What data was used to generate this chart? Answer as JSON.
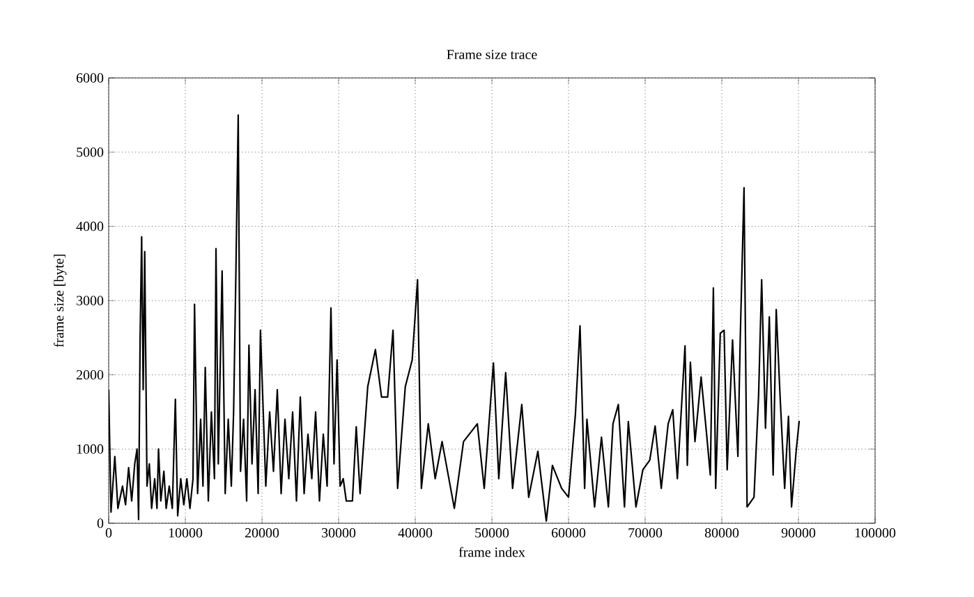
{
  "chart_data": {
    "type": "line",
    "title": "Frame size trace",
    "xlabel": "frame index",
    "ylabel": "frame size [byte]",
    "xlim": [
      0,
      100000
    ],
    "ylim": [
      0,
      6000
    ],
    "xticks": [
      0,
      10000,
      20000,
      30000,
      40000,
      50000,
      60000,
      70000,
      80000,
      90000,
      100000
    ],
    "yticks": [
      0,
      1000,
      2000,
      3000,
      4000,
      5000,
      6000
    ],
    "grid": true,
    "marker": "none",
    "line_style": "solid",
    "series": [
      {
        "color": "#000000",
        "x": [
          0,
          300,
          800,
          1200,
          1800,
          2200,
          2600,
          3000,
          3400,
          3700,
          3900,
          4100,
          4300,
          4500,
          4700,
          5000,
          5300,
          5600,
          6000,
          6300,
          6500,
          6800,
          7200,
          7500,
          7900,
          8300,
          8700,
          9000,
          9400,
          9800,
          10200,
          10600,
          11000,
          11200,
          11600,
          12000,
          12300,
          12600,
          13000,
          13400,
          13800,
          14000,
          14300,
          14800,
          15200,
          15600,
          16000,
          16300,
          16600,
          16900,
          17200,
          17600,
          18000,
          18300,
          18700,
          19100,
          19500,
          19800,
          20500,
          21000,
          21500,
          22000,
          22500,
          23000,
          23500,
          24000,
          24500,
          25000,
          25500,
          26000,
          26500,
          27000,
          27500,
          28000,
          28500,
          29000,
          29400,
          29800,
          30200,
          30600,
          31000,
          31800,
          32300,
          32800,
          33800,
          34800,
          35600,
          36400,
          37100,
          37700,
          38700,
          39600,
          40300,
          40800,
          41700,
          42600,
          43500,
          45100,
          46300,
          48100,
          49000,
          50200,
          50900,
          51800,
          52700,
          53900,
          54800,
          56000,
          57100,
          57900,
          59100,
          60000,
          60900,
          61500,
          62100,
          62400,
          63400,
          64300,
          65200,
          65800,
          66500,
          67300,
          67800,
          68800,
          69700,
          70600,
          71300,
          72100,
          73000,
          73600,
          74200,
          75200,
          75500,
          75900,
          76500,
          77300,
          78000,
          78500,
          78900,
          79200,
          79800,
          80300,
          80700,
          81400,
          82100,
          82400,
          82900,
          83300,
          84200,
          84800,
          85200,
          85700,
          86200,
          86700,
          87100,
          87600,
          88200,
          88700,
          89100,
          89700,
          90100
        ],
        "values": [
          1800,
          150,
          900,
          200,
          500,
          250,
          750,
          300,
          800,
          1000,
          50,
          2500,
          3860,
          1800,
          3660,
          500,
          800,
          200,
          600,
          200,
          1000,
          300,
          700,
          200,
          500,
          200,
          1670,
          100,
          600,
          250,
          600,
          200,
          600,
          2950,
          400,
          1400,
          500,
          2100,
          300,
          1500,
          600,
          3700,
          800,
          3400,
          400,
          1400,
          500,
          1500,
          3400,
          5500,
          700,
          1400,
          300,
          2400,
          800,
          1800,
          400,
          2600,
          500,
          1500,
          700,
          1800,
          400,
          1400,
          600,
          1500,
          300,
          1700,
          400,
          1200,
          600,
          1500,
          300,
          1200,
          500,
          2900,
          800,
          2200,
          500,
          600,
          300,
          300,
          1300,
          400,
          1840,
          2340,
          1700,
          1700,
          2600,
          470,
          1840,
          2200,
          3280,
          470,
          1340,
          600,
          1100,
          200,
          1100,
          1340,
          470,
          2160,
          600,
          2030,
          470,
          1600,
          350,
          970,
          30,
          780,
          470,
          350,
          1470,
          2660,
          470,
          1400,
          220,
          1160,
          220,
          1340,
          1600,
          220,
          1370,
          220,
          720,
          850,
          1310,
          470,
          1340,
          1530,
          600,
          2390,
          780,
          2170,
          1100,
          1970,
          1220,
          650,
          3170,
          470,
          2560,
          2600,
          720,
          2470,
          900,
          2470,
          4520,
          220,
          350,
          1720,
          3280,
          1280,
          2780,
          650,
          2880,
          1720,
          470,
          1440,
          220,
          970,
          1380
        ]
      }
    ]
  }
}
